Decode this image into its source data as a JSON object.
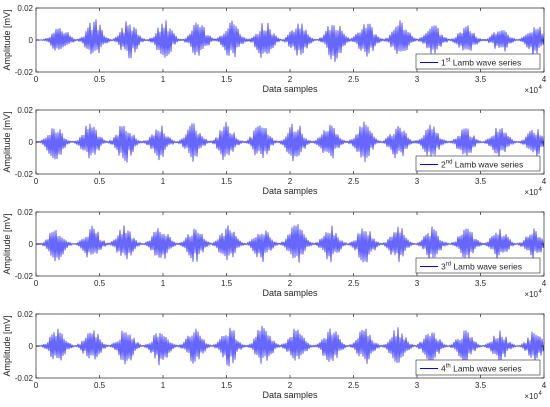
{
  "chart_data": [
    {
      "type": "line",
      "xlabel": "Data samples",
      "ylabel": "Amplitude [mV]",
      "xlim": [
        0,
        40000
      ],
      "ylim": [
        -0.02,
        0.02
      ],
      "x_ticks": [
        "0",
        "0.5",
        "1",
        "1.5",
        "2",
        "2.5",
        "3",
        "3.5",
        "4"
      ],
      "y_ticks": [
        "0.02",
        "0",
        "-0.02"
      ],
      "x_multiplier": "×10",
      "x_multiplier_exp": "4",
      "legend": {
        "prefix": "1",
        "sup": "st",
        "suffix": " Lamb wave series",
        "position": "bottom-right"
      },
      "color": "#0000ff",
      "packet_centers": [
        1900,
        4600,
        7300,
        10100,
        12800,
        15400,
        18000,
        20700,
        23500,
        26000,
        28700,
        31300,
        33900,
        36600,
        39300
      ],
      "packet_peaks": [
        0.011,
        0.014,
        0.013,
        0.013,
        0.012,
        0.013,
        0.013,
        0.013,
        0.014,
        0.013,
        0.013,
        0.01,
        0.01,
        0.009,
        0.011
      ]
    },
    {
      "type": "line",
      "xlabel": "Data samples",
      "ylabel": "Amplitude [mV]",
      "xlim": [
        0,
        40000
      ],
      "ylim": [
        -0.02,
        0.02
      ],
      "x_ticks": [
        "0",
        "0.5",
        "1",
        "1.5",
        "2",
        "2.5",
        "3",
        "3.5",
        "4"
      ],
      "y_ticks": [
        "0.02",
        "0",
        "-0.02"
      ],
      "x_multiplier": "×10",
      "x_multiplier_exp": "4",
      "legend": {
        "prefix": "2",
        "sup": "nd",
        "suffix": " Lamb wave series",
        "position": "bottom-right"
      },
      "color": "#0000ff",
      "packet_centers": [
        1500,
        4300,
        7000,
        9700,
        12400,
        15000,
        17700,
        20400,
        23100,
        25800,
        28500,
        31100,
        33800,
        36500,
        39300
      ],
      "packet_peaks": [
        0.012,
        0.013,
        0.014,
        0.012,
        0.013,
        0.013,
        0.013,
        0.014,
        0.013,
        0.013,
        0.012,
        0.012,
        0.01,
        0.011,
        0.01
      ]
    },
    {
      "type": "line",
      "xlabel": "Data samples",
      "ylabel": "Amplitude [mV]",
      "xlim": [
        0,
        40000
      ],
      "ylim": [
        -0.02,
        0.02
      ],
      "x_ticks": [
        "0",
        "0.5",
        "1",
        "1.5",
        "2",
        "2.5",
        "3",
        "3.5",
        "4"
      ],
      "y_ticks": [
        "0.02",
        "0",
        "-0.02"
      ],
      "x_multiplier": "×10",
      "x_multiplier_exp": "4",
      "legend": {
        "prefix": "3",
        "sup": "rd",
        "suffix": " Lamb wave series",
        "position": "bottom-right"
      },
      "color": "#0000ff",
      "packet_centers": [
        1600,
        4400,
        7000,
        9800,
        12500,
        15100,
        17800,
        20500,
        23200,
        25900,
        28500,
        31200,
        33900,
        36500,
        39200
      ],
      "packet_peaks": [
        0.011,
        0.012,
        0.012,
        0.013,
        0.012,
        0.013,
        0.012,
        0.013,
        0.012,
        0.013,
        0.012,
        0.011,
        0.011,
        0.011,
        0.01
      ]
    },
    {
      "type": "line",
      "xlabel": "Data samples",
      "ylabel": "Amplitude [mV]",
      "xlim": [
        0,
        40000
      ],
      "ylim": [
        -0.02,
        0.02
      ],
      "x_ticks": [
        "0",
        "0.5",
        "1",
        "1.5",
        "2",
        "2.5",
        "3",
        "3.5",
        "4"
      ],
      "y_ticks": [
        "0.02",
        "0",
        "-0.02"
      ],
      "x_multiplier": "×10",
      "x_multiplier_exp": "4",
      "legend": {
        "prefix": "4",
        "sup": "th",
        "suffix": " Lamb wave series",
        "position": "bottom-right"
      },
      "color": "#0000ff",
      "packet_centers": [
        1700,
        4400,
        7100,
        9800,
        12500,
        15200,
        17900,
        20500,
        23200,
        25900,
        28500,
        31100,
        33800,
        36500,
        39300
      ],
      "packet_peaks": [
        0.012,
        0.012,
        0.013,
        0.013,
        0.012,
        0.013,
        0.014,
        0.013,
        0.013,
        0.012,
        0.012,
        0.011,
        0.011,
        0.01,
        0.01
      ]
    }
  ]
}
